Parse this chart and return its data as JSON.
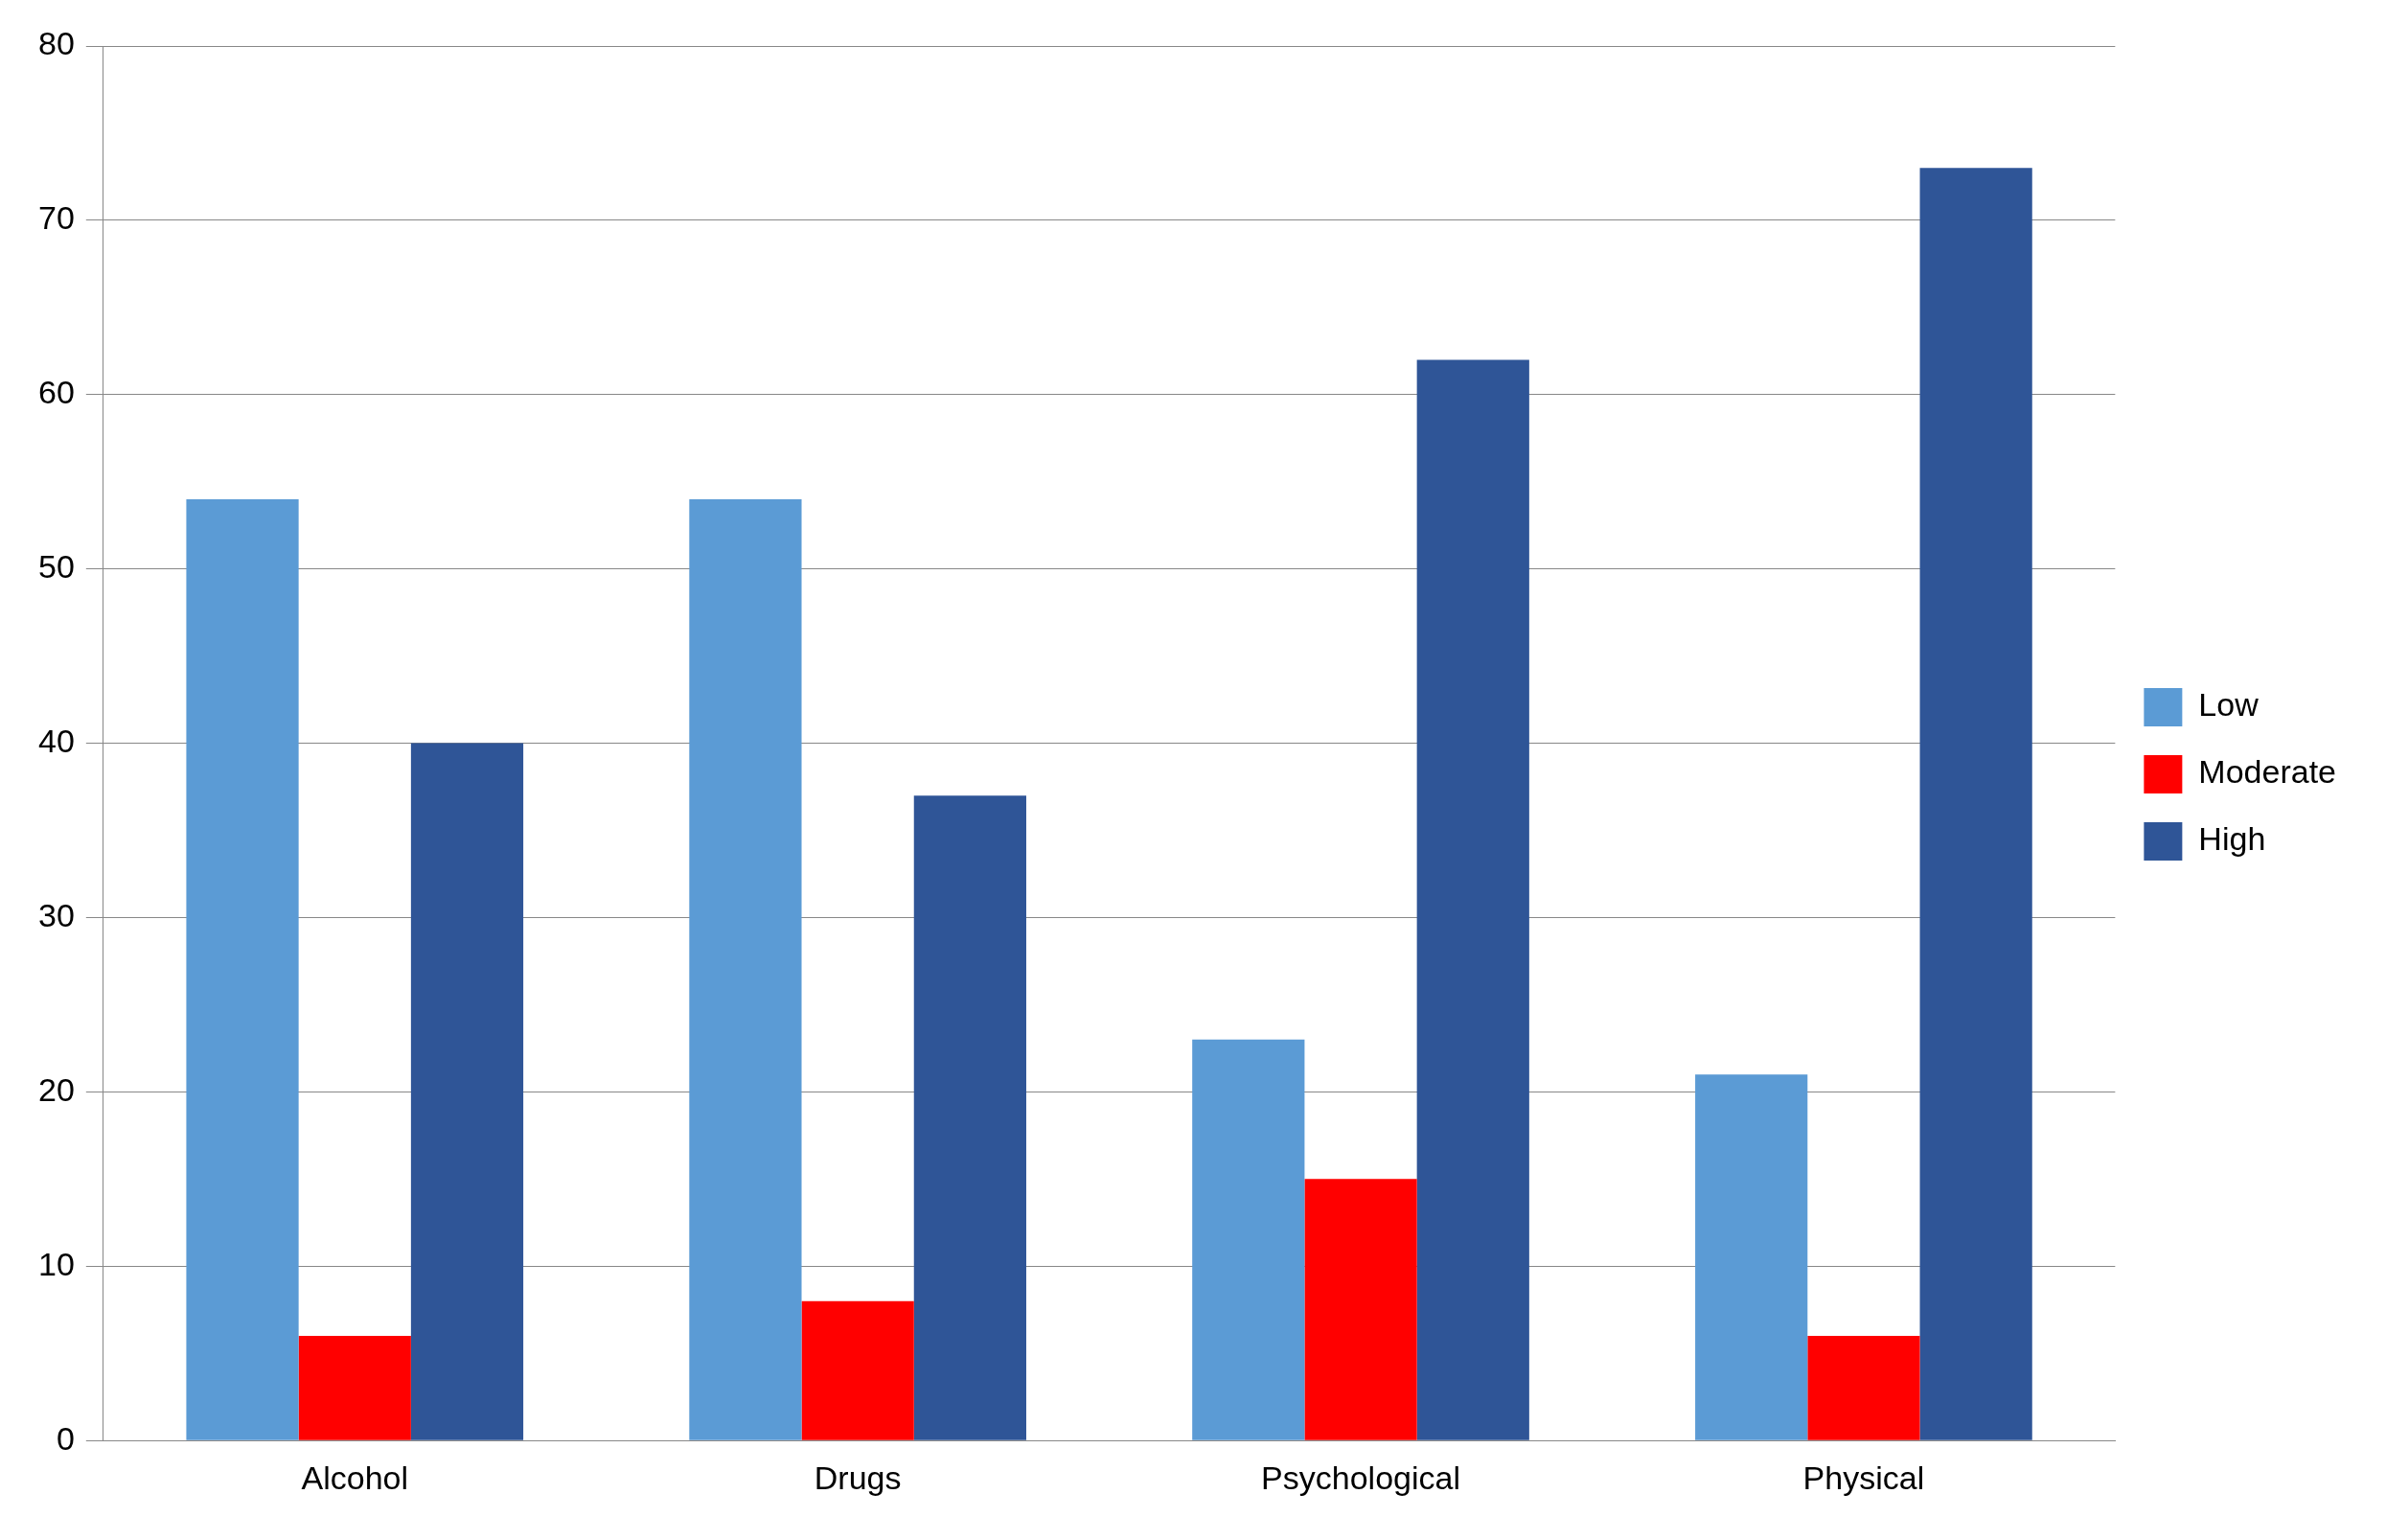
{
  "chart_data": {
    "type": "bar",
    "categories": [
      "Alcohol",
      "Drugs",
      "Psychological",
      "Physical"
    ],
    "series": [
      {
        "name": "Low",
        "color": "#5b9bd5",
        "values": [
          54,
          54,
          23,
          21
        ]
      },
      {
        "name": "Moderate",
        "color": "#ff0000",
        "values": [
          6,
          8,
          15,
          6
        ]
      },
      {
        "name": "High",
        "color": "#2f5597",
        "values": [
          40,
          37,
          62,
          73
        ]
      }
    ],
    "ylim": [
      0,
      80
    ],
    "yticks": [
      0,
      10,
      20,
      30,
      40,
      50,
      60,
      70,
      80
    ],
    "grid": "y",
    "legend": "right"
  }
}
